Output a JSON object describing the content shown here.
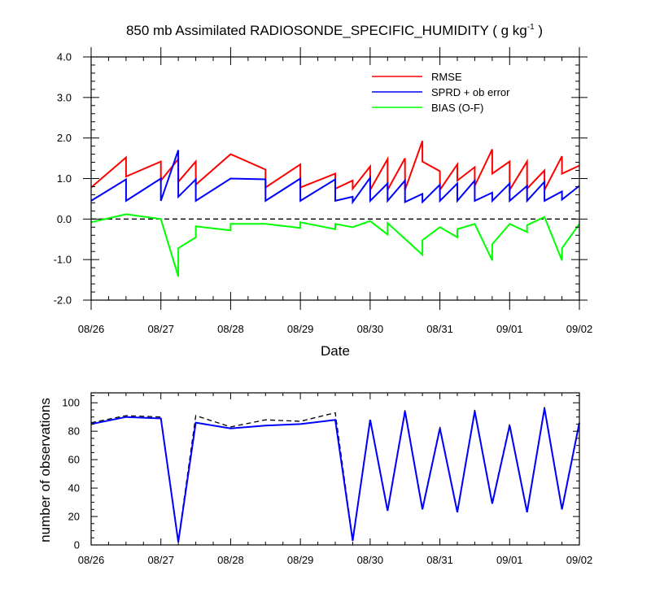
{
  "chart_data": [
    {
      "type": "line",
      "title": "850 mb Assimilated RADIOSONDE_SPECIFIC_HUMIDITY ( g kg",
      "title_units_sup": "-1",
      "title_suffix": " )",
      "xlabel": "Date",
      "ylabel": "",
      "x_tick_labels": [
        "08/26",
        "08/27",
        "08/28",
        "08/29",
        "08/30",
        "08/31",
        "09/01",
        "09/02"
      ],
      "y_tick_labels": [
        "-2.0",
        "-1.0",
        "0.0",
        "1.0",
        "2.0",
        "3.0",
        "4.0"
      ],
      "xlim": [
        0,
        7
      ],
      "ylim": [
        -2.0,
        4.0
      ],
      "reference_line": {
        "y": 0.0,
        "style": "dashed",
        "color": "#000000"
      },
      "legend_position": "top-right",
      "series": [
        {
          "name": "RMSE",
          "color": "#ff0000",
          "x": [
            0.0,
            0.5,
            0.5,
            1.0,
            1.0,
            1.25,
            1.25,
            1.5,
            1.5,
            2.0,
            2.5,
            2.5,
            3.0,
            3.0,
            3.5,
            3.5,
            3.75,
            3.75,
            4.0,
            4.0,
            4.25,
            4.25,
            4.5,
            4.5,
            4.75,
            4.75,
            5.0,
            5.0,
            5.25,
            5.25,
            5.5,
            5.5,
            5.75,
            5.75,
            6.0,
            6.0,
            6.25,
            6.25,
            6.5,
            6.5,
            6.75,
            6.75,
            7.0
          ],
          "y": [
            0.78,
            1.52,
            1.05,
            1.42,
            0.95,
            1.48,
            0.92,
            1.42,
            0.85,
            1.6,
            1.22,
            0.78,
            1.35,
            0.78,
            1.12,
            0.75,
            0.95,
            0.75,
            1.3,
            0.72,
            1.48,
            0.72,
            1.5,
            0.72,
            1.93,
            1.42,
            1.18,
            0.72,
            1.35,
            0.95,
            1.28,
            0.82,
            1.72,
            1.12,
            1.42,
            0.72,
            1.42,
            0.75,
            1.2,
            0.72,
            1.55,
            1.12,
            1.32
          ]
        },
        {
          "name": "SPRD + ob error",
          "color": "#0000ff",
          "x": [
            0.0,
            0.5,
            0.5,
            1.0,
            1.0,
            1.25,
            1.25,
            1.5,
            1.5,
            2.0,
            2.5,
            2.5,
            3.0,
            3.0,
            3.5,
            3.5,
            3.75,
            3.75,
            4.0,
            4.0,
            4.25,
            4.25,
            4.5,
            4.5,
            4.75,
            4.75,
            5.0,
            5.0,
            5.25,
            5.25,
            5.5,
            5.5,
            5.75,
            5.75,
            6.0,
            6.0,
            6.25,
            6.25,
            6.5,
            6.5,
            6.75,
            6.75,
            7.0
          ],
          "y": [
            0.45,
            0.98,
            0.45,
            1.0,
            0.45,
            1.7,
            0.55,
            0.98,
            0.45,
            1.0,
            0.98,
            0.45,
            1.0,
            0.45,
            0.98,
            0.45,
            0.55,
            0.42,
            1.02,
            0.45,
            0.88,
            0.45,
            0.95,
            0.42,
            0.62,
            0.42,
            0.85,
            0.45,
            0.88,
            0.45,
            0.95,
            0.45,
            0.65,
            0.45,
            0.88,
            0.45,
            0.82,
            0.45,
            0.92,
            0.45,
            0.68,
            0.48,
            0.82
          ]
        },
        {
          "name": "BIAS (O-F)",
          "color": "#00ff00",
          "x": [
            0.0,
            0.5,
            1.0,
            1.25,
            1.25,
            1.5,
            1.5,
            2.0,
            2.0,
            2.5,
            3.0,
            3.0,
            3.5,
            3.5,
            3.75,
            4.0,
            4.25,
            4.25,
            4.75,
            4.75,
            5.0,
            5.25,
            5.25,
            5.5,
            5.75,
            5.75,
            6.0,
            6.25,
            6.25,
            6.5,
            6.75,
            6.75,
            7.0
          ],
          "y": [
            -0.08,
            0.12,
            0.0,
            -1.42,
            -0.72,
            -0.45,
            -0.18,
            -0.28,
            -0.12,
            -0.12,
            -0.22,
            -0.08,
            -0.25,
            -0.12,
            -0.2,
            -0.05,
            -0.38,
            -0.1,
            -0.88,
            -0.52,
            -0.2,
            -0.45,
            -0.25,
            -0.12,
            -1.02,
            -0.62,
            -0.12,
            -0.32,
            -0.15,
            0.05,
            -1.02,
            -0.72,
            -0.12
          ]
        }
      ]
    },
    {
      "type": "line",
      "title": "",
      "xlabel": "",
      "ylabel": "number of observations",
      "x_tick_labels": [
        "08/26",
        "08/27",
        "08/28",
        "08/29",
        "08/30",
        "08/31",
        "09/01",
        "09/02"
      ],
      "y_tick_labels": [
        "0",
        "20",
        "40",
        "60",
        "80",
        "100"
      ],
      "xlim": [
        0,
        7
      ],
      "ylim": [
        0,
        107
      ],
      "series": [
        {
          "name": "",
          "style": "dashed",
          "color": "#000000",
          "x": [
            0.0,
            0.5,
            1.0,
            1.25,
            1.5,
            2.0,
            2.5,
            3.0,
            3.5,
            3.75,
            4.0,
            4.25,
            4.5,
            4.75,
            5.0,
            5.25,
            5.5,
            5.75,
            6.0,
            6.25,
            6.5,
            6.75,
            7.0
          ],
          "y": [
            86,
            91,
            90,
            3,
            91,
            83,
            88,
            87,
            93,
            4,
            89,
            25,
            95,
            26,
            83,
            24,
            95,
            30,
            85,
            24,
            97,
            26,
            87
          ]
        },
        {
          "name": "",
          "style": "solid",
          "color": "#0000ff",
          "x": [
            0.0,
            0.5,
            1.0,
            1.25,
            1.5,
            2.0,
            2.5,
            3.0,
            3.5,
            3.75,
            4.0,
            4.25,
            4.5,
            4.75,
            5.0,
            5.25,
            5.5,
            5.75,
            6.0,
            6.25,
            6.5,
            6.75,
            7.0
          ],
          "y": [
            85,
            90,
            89,
            2,
            86,
            82,
            84,
            85,
            88,
            3,
            88,
            24,
            94,
            25,
            82,
            23,
            94,
            29,
            84,
            23,
            96,
            25,
            86
          ]
        }
      ]
    }
  ]
}
